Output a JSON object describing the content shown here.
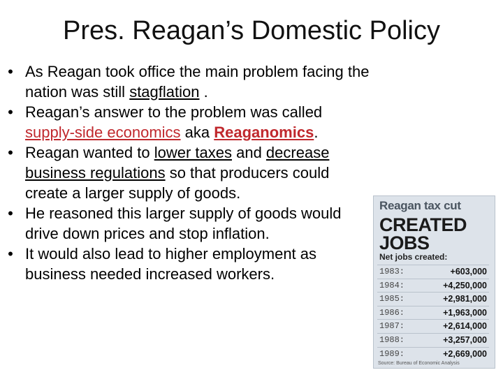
{
  "title": "Pres. Reagan’s Domestic Policy",
  "bullets": [
    {
      "pre": "As Reagan took office the main problem facing the nation was still ",
      "u1": "stagflation",
      "post": " ."
    },
    {
      "pre": "Reagan’s answer to the problem was called ",
      "link": "supply-side economics",
      "mid": " aka ",
      "bold": "Reaganomics",
      "post": "."
    },
    {
      "pre": "Reagan wanted to ",
      "u1": "lower taxes",
      "mid": " and ",
      "u2": "decrease business regulations",
      "post": " so that producers could create a larger supply of goods."
    },
    {
      "text": "He reasoned this larger supply of goods would drive down prices and stop inflation."
    },
    {
      "text": "It would also lead to higher employment as business needed increased workers."
    }
  ],
  "clip": {
    "kicker": "Reagan tax cut",
    "headline_1": "CREATED",
    "headline_2": "JOBS",
    "subhead": "Net jobs created:",
    "rows": [
      {
        "year": "1983:",
        "value": "+603,000"
      },
      {
        "year": "1984:",
        "value": "+4,250,000"
      },
      {
        "year": "1985:",
        "value": "+2,981,000"
      },
      {
        "year": "1986:",
        "value": "+1,963,000"
      },
      {
        "year": "1987:",
        "value": "+2,614,000"
      },
      {
        "year": "1988:",
        "value": "+3,257,000"
      },
      {
        "year": "1989:",
        "value": "+2,669,000"
      }
    ],
    "source": "Source: Bureau of Economic Analysis"
  }
}
